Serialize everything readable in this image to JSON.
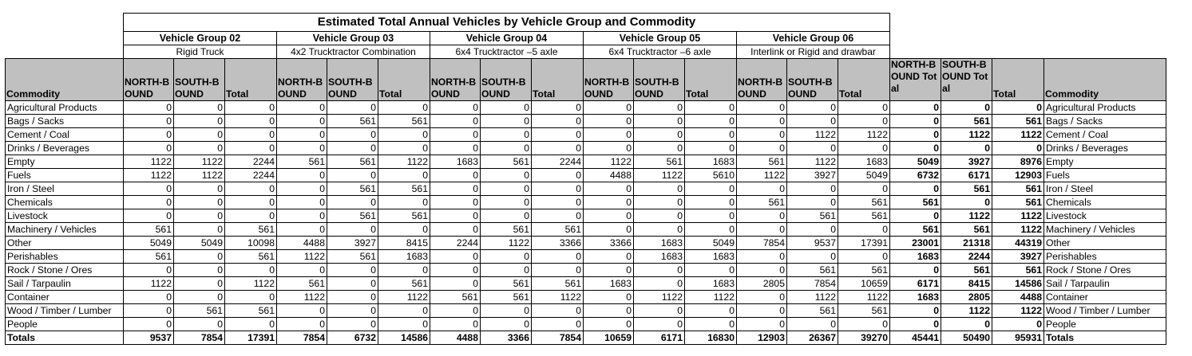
{
  "title": "Estimated Total Annual Vehicles by Vehicle Group and Commodity",
  "groups": [
    {
      "name": "Vehicle Group 02",
      "type": "Rigid Truck"
    },
    {
      "name": "Vehicle Group 03",
      "type": "4x2 Trucktractor Combination"
    },
    {
      "name": "Vehicle Group 04",
      "type": "6x4 Trucktractor –5 axle"
    },
    {
      "name": "Vehicle Group 05",
      "type": "6x4 Trucktractor –6 axle"
    },
    {
      "name": "Vehicle Group 06",
      "type": "Interlink or Rigid and drawbar"
    }
  ],
  "headers": {
    "commodity": "Commodity",
    "north": "NORTH-BOUND",
    "south": "SOUTH-BOUND",
    "total": "Total",
    "north_total": "NORTH-BOUND Total",
    "south_total": "SOUTH-BOUND Total",
    "grand_total": "Total",
    "commodity_right": "Commodity"
  },
  "rows": [
    {
      "label": "Agricultural Products",
      "v": [
        0,
        0,
        0,
        0,
        0,
        0,
        0,
        0,
        0,
        0,
        0,
        0,
        0,
        0,
        0,
        0,
        0,
        0
      ]
    },
    {
      "label": "Bags / Sacks",
      "v": [
        0,
        0,
        0,
        0,
        561,
        561,
        0,
        0,
        0,
        0,
        0,
        0,
        0,
        0,
        0,
        0,
        561,
        561
      ]
    },
    {
      "label": "Cement / Coal",
      "v": [
        0,
        0,
        0,
        0,
        0,
        0,
        0,
        0,
        0,
        0,
        0,
        0,
        0,
        1122,
        1122,
        0,
        1122,
        1122
      ]
    },
    {
      "label": "Drinks / Beverages",
      "v": [
        0,
        0,
        0,
        0,
        0,
        0,
        0,
        0,
        0,
        0,
        0,
        0,
        0,
        0,
        0,
        0,
        0,
        0
      ]
    },
    {
      "label": "Empty",
      "v": [
        1122,
        1122,
        2244,
        561,
        561,
        1122,
        1683,
        561,
        2244,
        1122,
        561,
        1683,
        561,
        1122,
        1683,
        5049,
        3927,
        8976
      ]
    },
    {
      "label": "Fuels",
      "v": [
        1122,
        1122,
        2244,
        0,
        0,
        0,
        0,
        0,
        0,
        4488,
        1122,
        5610,
        1122,
        3927,
        5049,
        6732,
        6171,
        12903
      ]
    },
    {
      "label": "Iron / Steel",
      "v": [
        0,
        0,
        0,
        0,
        561,
        561,
        0,
        0,
        0,
        0,
        0,
        0,
        0,
        0,
        0,
        0,
        561,
        561
      ]
    },
    {
      "label": "Chemicals",
      "v": [
        0,
        0,
        0,
        0,
        0,
        0,
        0,
        0,
        0,
        0,
        0,
        0,
        561,
        0,
        561,
        561,
        0,
        561
      ]
    },
    {
      "label": "Livestock",
      "v": [
        0,
        0,
        0,
        0,
        561,
        561,
        0,
        0,
        0,
        0,
        0,
        0,
        0,
        561,
        561,
        0,
        1122,
        1122
      ]
    },
    {
      "label": "Machinery / Vehicles",
      "v": [
        561,
        0,
        561,
        0,
        0,
        0,
        0,
        561,
        561,
        0,
        0,
        0,
        0,
        0,
        0,
        561,
        561,
        1122
      ]
    },
    {
      "label": "Other",
      "v": [
        5049,
        5049,
        10098,
        4488,
        3927,
        8415,
        2244,
        1122,
        3366,
        3366,
        1683,
        5049,
        7854,
        9537,
        17391,
        23001,
        21318,
        44319
      ]
    },
    {
      "label": "Perishables",
      "v": [
        561,
        0,
        561,
        1122,
        561,
        1683,
        0,
        0,
        0,
        0,
        1683,
        1683,
        0,
        0,
        0,
        1683,
        2244,
        3927
      ]
    },
    {
      "label": "Rock / Stone / Ores",
      "v": [
        0,
        0,
        0,
        0,
        0,
        0,
        0,
        0,
        0,
        0,
        0,
        0,
        0,
        561,
        561,
        0,
        561,
        561
      ]
    },
    {
      "label": "Sail / Tarpaulin",
      "v": [
        1122,
        0,
        1122,
        561,
        0,
        561,
        0,
        561,
        561,
        1683,
        0,
        1683,
        2805,
        7854,
        10659,
        6171,
        8415,
        14586
      ]
    },
    {
      "label": "Container",
      "v": [
        0,
        0,
        0,
        1122,
        0,
        1122,
        561,
        561,
        1122,
        0,
        1122,
        1122,
        0,
        1122,
        1122,
        1683,
        2805,
        4488
      ]
    },
    {
      "label": "Wood / Timber / Lumber",
      "v": [
        0,
        561,
        561,
        0,
        0,
        0,
        0,
        0,
        0,
        0,
        0,
        0,
        0,
        561,
        561,
        0,
        1122,
        1122
      ]
    },
    {
      "label": "People",
      "v": [
        0,
        0,
        0,
        0,
        0,
        0,
        0,
        0,
        0,
        0,
        0,
        0,
        0,
        0,
        0,
        0,
        0,
        0
      ]
    }
  ],
  "totals": {
    "label": "Totals",
    "v": [
      9537,
      7854,
      17391,
      7854,
      6732,
      14586,
      4488,
      3366,
      7854,
      10659,
      6171,
      16830,
      12903,
      26367,
      39270,
      45441,
      50490,
      95931
    ]
  }
}
